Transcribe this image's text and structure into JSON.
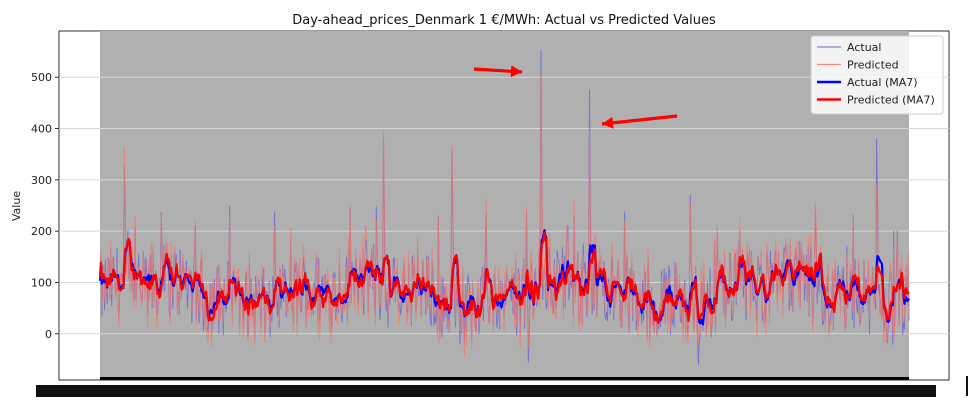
{
  "chart_data": {
    "type": "line",
    "title": "Day-ahead_prices_Denmark 1 €/MWh: Actual vs Predicted Values",
    "xlabel": "",
    "ylabel": "Value",
    "ylim": [
      -90,
      590
    ],
    "yticks": [
      0,
      100,
      200,
      300,
      400,
      500
    ],
    "grid": true,
    "legend_position": "top-right",
    "x_tick_labels_unreadable": true,
    "n_points": 900,
    "series": [
      {
        "name": "Actual",
        "color": "#6b6bd6",
        "style": "thin"
      },
      {
        "name": "Predicted",
        "color": "#f07a6a",
        "style": "thin"
      },
      {
        "name": "Actual (MA7)",
        "color": "#0000ff",
        "style": "thick"
      },
      {
        "name": "Predicted (MA7)",
        "color": "#ff0000",
        "style": "thick"
      }
    ],
    "spikes": [
      {
        "at": 0.03,
        "actual": 330,
        "predicted": 365
      },
      {
        "at": 0.35,
        "actual": 380,
        "predicted": 395
      },
      {
        "at": 0.435,
        "actual": 360,
        "predicted": 370
      },
      {
        "at": 0.545,
        "actual": 552,
        "predicted": 505
      },
      {
        "at": 0.605,
        "actual": 475,
        "predicted": 400
      },
      {
        "at": 0.73,
        "actual": 270,
        "predicted": 255
      },
      {
        "at": 0.96,
        "actual": 380,
        "predicted": 290
      },
      {
        "at": 0.74,
        "actual": -60,
        "predicted": -20
      },
      {
        "at": 0.53,
        "actual": -55,
        "predicted": -30
      }
    ],
    "annotations": [
      {
        "type": "arrow",
        "color": "#ff0000",
        "from": [
          520,
          545
        ],
        "to": [
          545,
          542
        ]
      },
      {
        "type": "arrow",
        "color": "#ff0000",
        "from": [
          680,
          492
        ],
        "to": [
          605,
          410
        ]
      }
    ]
  }
}
